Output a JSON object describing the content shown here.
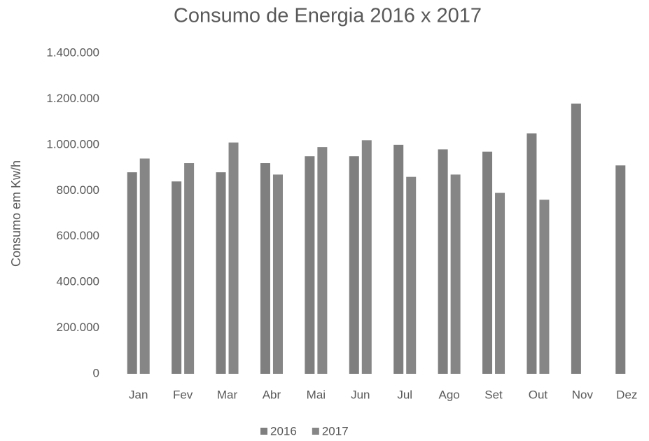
{
  "chart_data": {
    "type": "bar",
    "title": "Consumo de Energia 2016 x 2017",
    "y_label": "Consumo em Kw/h",
    "categories": [
      "Jan",
      "Fev",
      "Mar",
      "Abr",
      "Mai",
      "Jun",
      "Jul",
      "Ago",
      "Set",
      "Out",
      "Nov",
      "Dez"
    ],
    "series": [
      {
        "name": "2016",
        "color": "#7f7f7f",
        "values": [
          880000,
          840000,
          880000,
          920000,
          950000,
          950000,
          1000000,
          980000,
          970000,
          1050000,
          1180000,
          910000
        ]
      },
      {
        "name": "2017",
        "color": "#868686",
        "values": [
          940000,
          920000,
          1010000,
          870000,
          990000,
          1020000,
          860000,
          870000,
          790000,
          760000,
          null,
          null
        ]
      }
    ],
    "ylim": [
      0,
      1400000
    ],
    "yticks": [
      0,
      {
        "value": 200000,
        "label": "200.000"
      },
      {
        "value": 400000,
        "label": "400.000"
      },
      {
        "value": 600000,
        "label": "600.000"
      },
      {
        "value": 800000,
        "label": "800.000"
      },
      {
        "value": 1000000,
        "label": "1.000.000"
      },
      {
        "value": 1200000,
        "label": "1.200.000"
      },
      {
        "value": 1400000,
        "label": "1.400.000"
      }
    ],
    "grid": false,
    "legend": "bottom"
  }
}
